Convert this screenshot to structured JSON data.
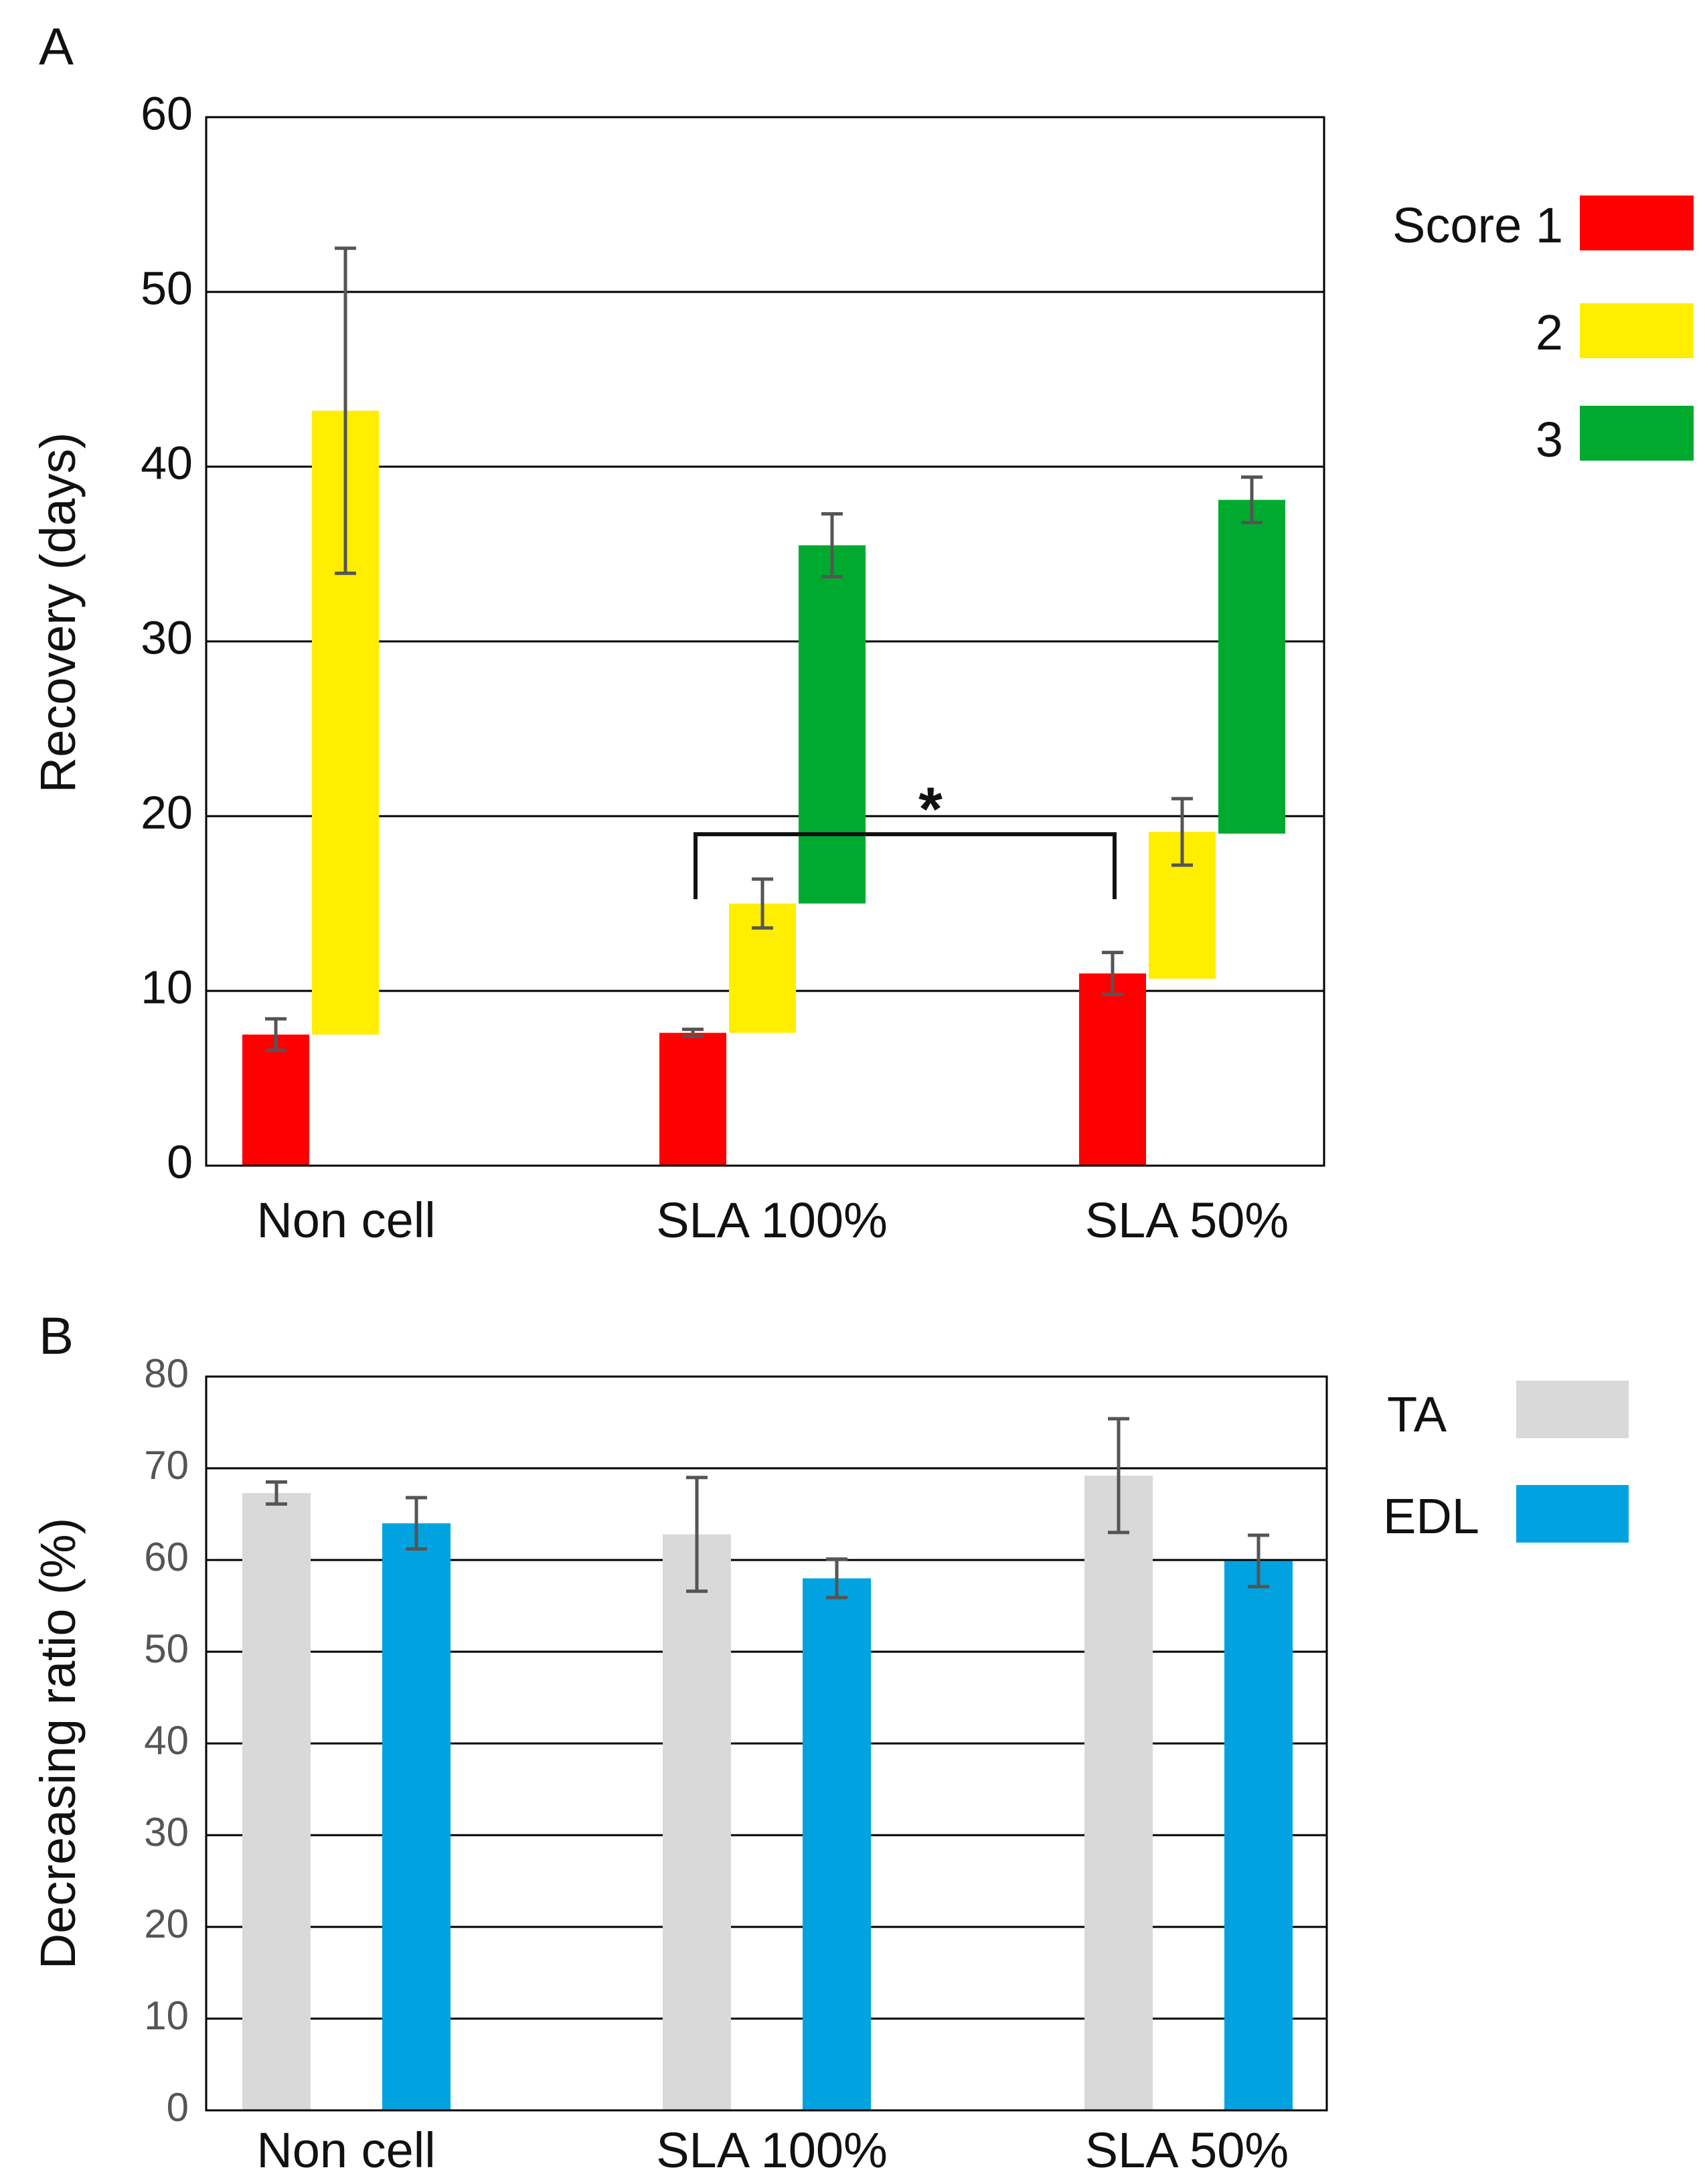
{
  "chart_data": [
    {
      "panel_label": "A",
      "type": "bar",
      "subtype": "floating",
      "ylabel": "Recovery (days)",
      "ylim": [
        0,
        60
      ],
      "yticks": [
        0,
        10,
        20,
        30,
        40,
        50,
        60
      ],
      "ytick_labels": [
        "0",
        "10",
        "20",
        "30",
        "40",
        "50",
        "60"
      ],
      "grid": true,
      "categories": [
        "Non cell",
        "SLA 100%",
        "SLA 50%"
      ],
      "legend_title": "",
      "legend_position": "right",
      "series": [
        {
          "name": "Score 1",
          "legend_label": "Score 1",
          "color": "#ff0000",
          "bottoms": [
            0,
            0,
            0
          ],
          "values": [
            7.5,
            7.6,
            11.0
          ],
          "errors": [
            0.9,
            0.2,
            1.2
          ]
        },
        {
          "name": "2",
          "legend_label": "2",
          "color": "#ffee00",
          "bottoms": [
            7.5,
            7.6,
            10.7
          ],
          "values": [
            43.2,
            15.0,
            19.1
          ],
          "errors": [
            9.3,
            1.4,
            1.9
          ]
        },
        {
          "name": "3",
          "legend_label": "3",
          "color": "#00aa2e",
          "bottoms": [
            null,
            15.0,
            19.0
          ],
          "values": [
            null,
            35.5,
            38.1
          ],
          "errors": [
            null,
            1.8,
            1.3
          ]
        }
      ],
      "annotations": [
        {
          "text": "*",
          "type": "significance",
          "from": "SLA 100%",
          "to": "SLA 50%",
          "series": "Score 1",
          "value": 19.0
        }
      ]
    },
    {
      "panel_label": "B",
      "type": "bar",
      "ylabel": "Decreasing ratio (%)",
      "ylim": [
        0,
        80
      ],
      "yticks": [
        0,
        10,
        20,
        30,
        40,
        50,
        60,
        70,
        80
      ],
      "ytick_labels": [
        "0",
        "10",
        "20",
        "30",
        "40",
        "50",
        "60",
        "70",
        "80"
      ],
      "grid": true,
      "categories": [
        "Non cell",
        "SLA 100%",
        "SLA 50%"
      ],
      "legend_position": "right",
      "series": [
        {
          "name": "TA",
          "legend_label": "TA",
          "color": "#d9d9d9",
          "values": [
            67.3,
            62.8,
            69.2
          ],
          "errors": [
            1.2,
            6.2,
            6.2
          ]
        },
        {
          "name": "EDL",
          "legend_label": "EDL",
          "color": "#00a3e0",
          "values": [
            64.0,
            58.0,
            59.9
          ],
          "errors": [
            2.8,
            2.1,
            2.8
          ]
        }
      ]
    }
  ]
}
